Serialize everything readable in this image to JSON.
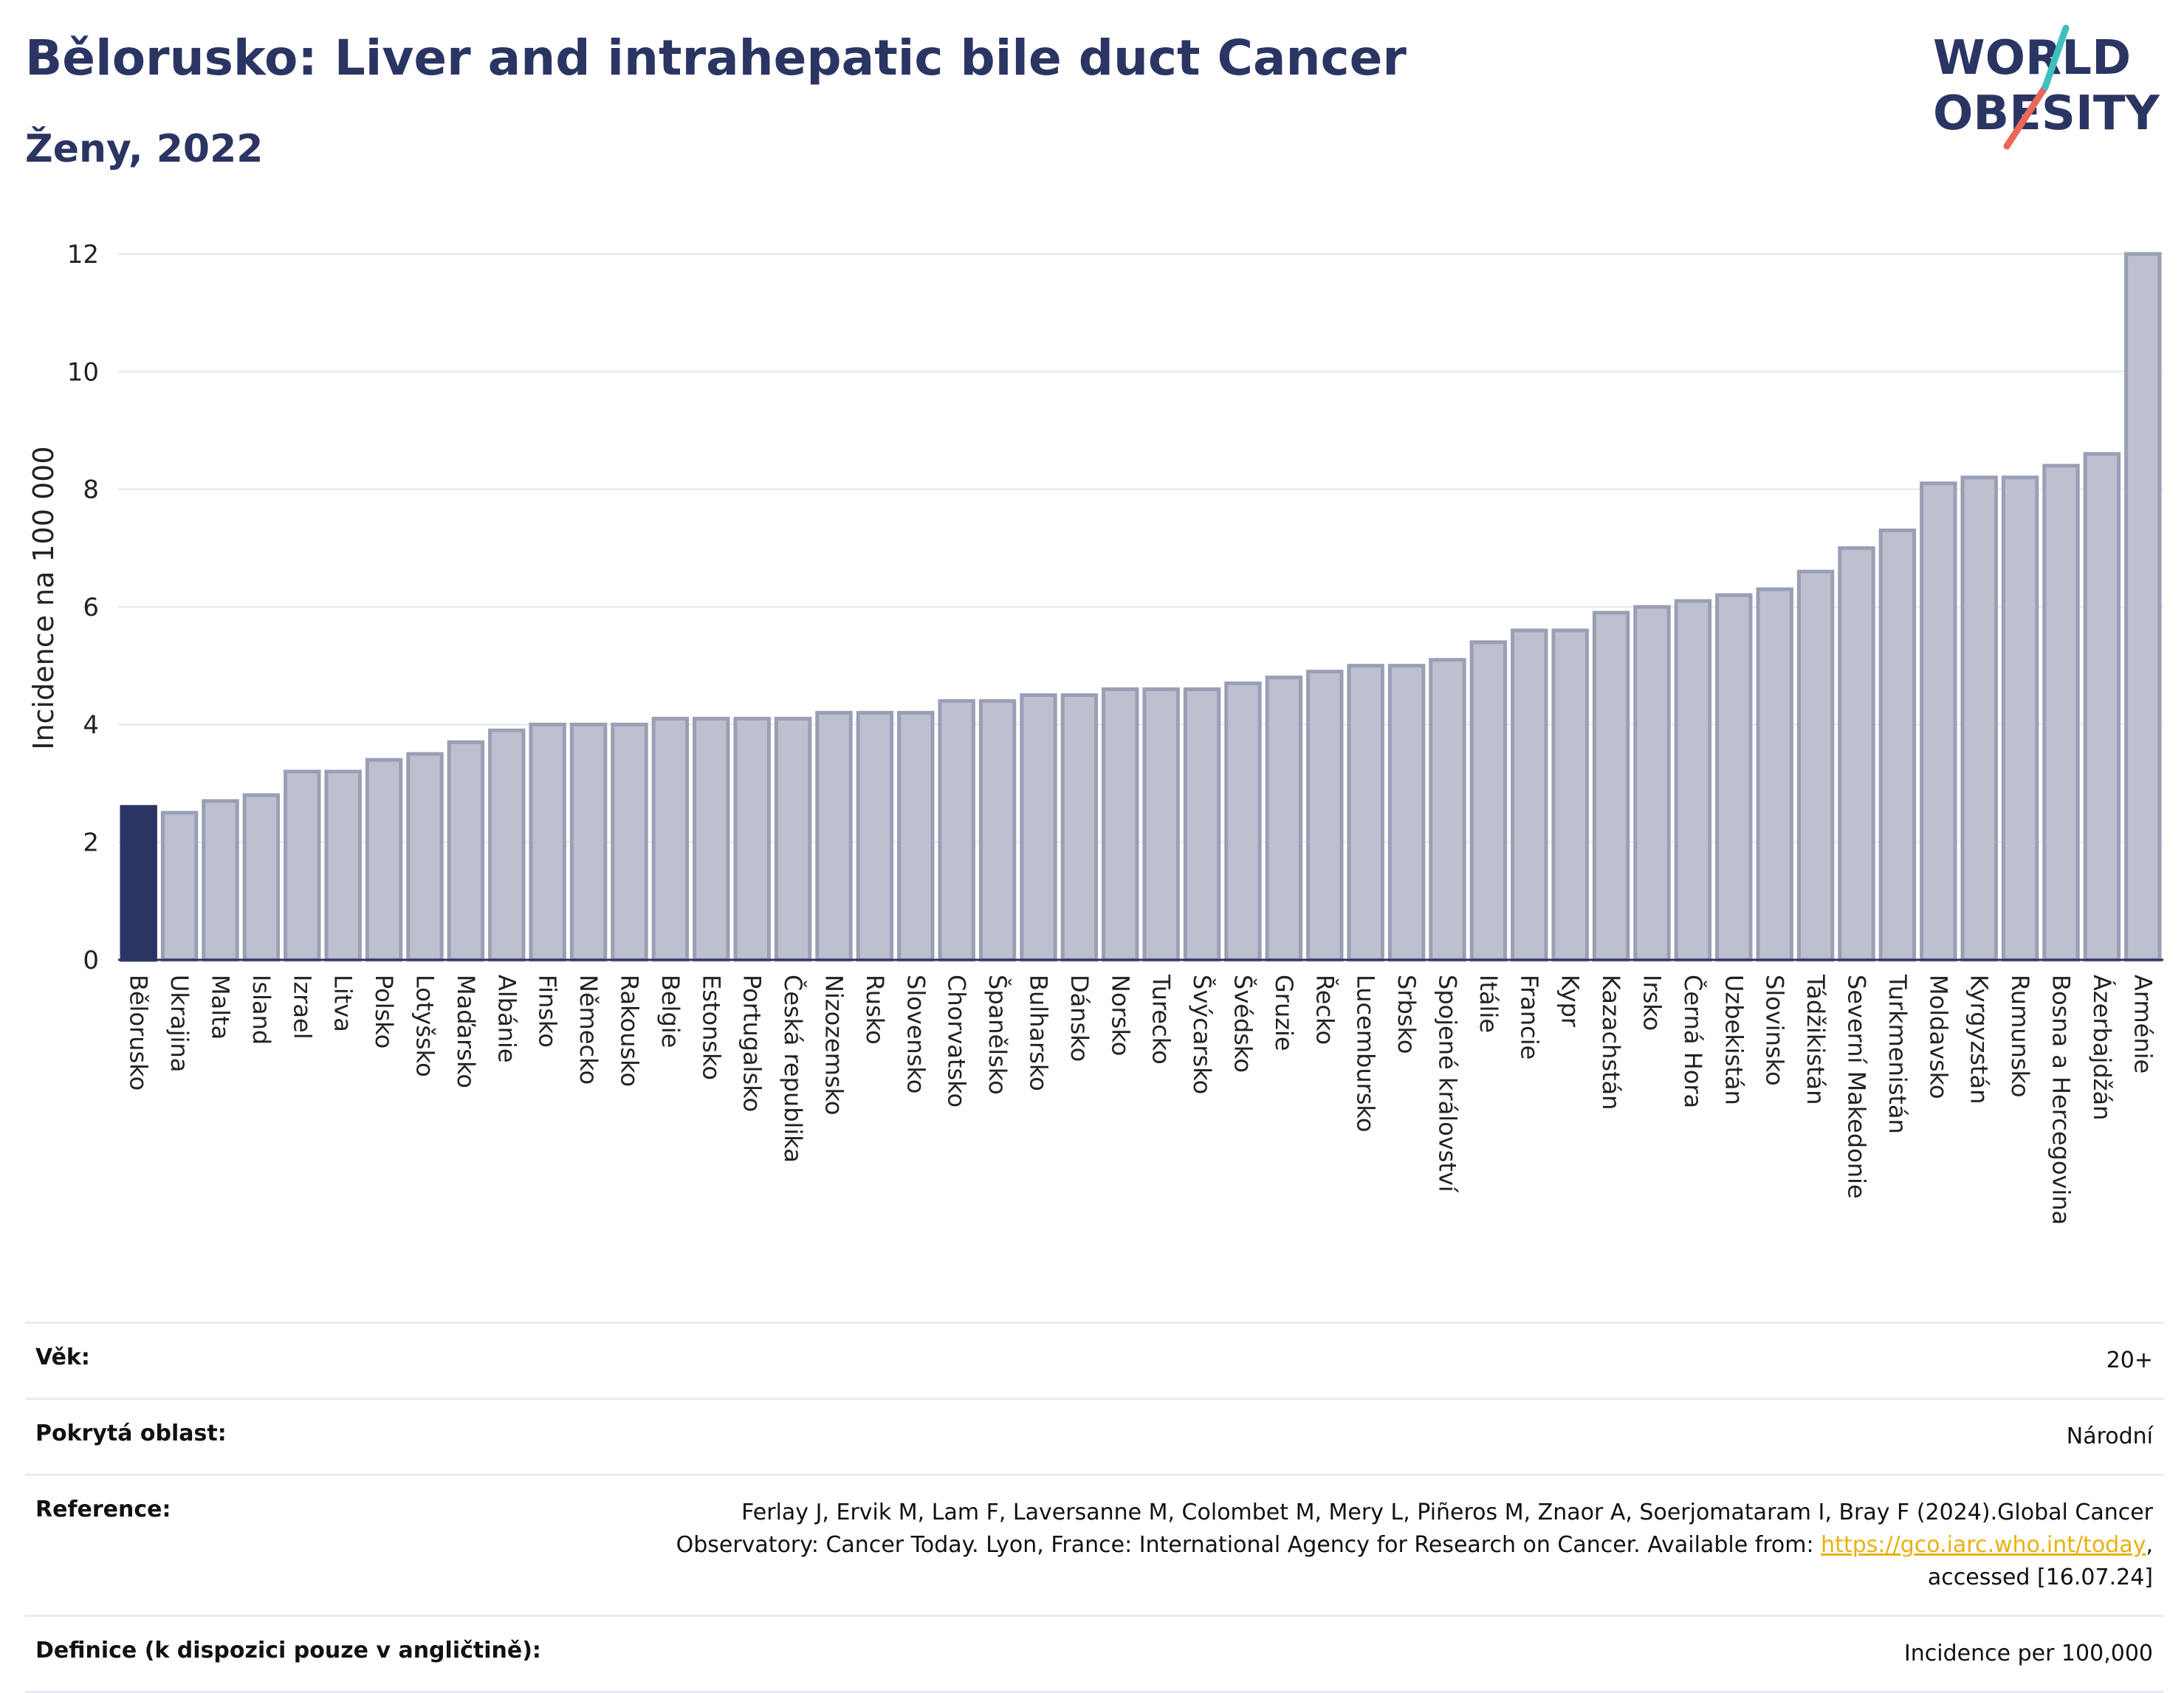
{
  "header": {
    "title": "Bělorusko: Liver and intrahepatic bile duct Cancer",
    "subtitle": "Ženy, 2022"
  },
  "logo": {
    "line1": "WORLD",
    "line2": "OBESITY",
    "colors": {
      "text": "#2b3563",
      "slash_teal": "#3fbfc0",
      "slash_red": "#e8685a"
    }
  },
  "chart_data": {
    "type": "bar",
    "ylabel": "Incidence na 100 000",
    "xlabel": "",
    "ylim": [
      0,
      12.3
    ],
    "yticks": [
      0,
      2,
      4,
      6,
      8,
      10,
      12
    ],
    "grid": true,
    "highlight_index": 0,
    "colors": {
      "highlight": "#2b3563",
      "bar_fill": "#bcc0cf",
      "bar_stroke": "#9a9fb5"
    },
    "categories": [
      "Bělorusko",
      "Ukrajina",
      "Malta",
      "Island",
      "Izrael",
      "Litva",
      "Polsko",
      "Lotyšsko",
      "Maďarsko",
      "Albánie",
      "Finsko",
      "Německo",
      "Rakousko",
      "Belgie",
      "Estonsko",
      "Portugalsko",
      "Česká republika",
      "Nizozemsko",
      "Rusko",
      "Slovensko",
      "Chorvatsko",
      "Španělsko",
      "Bulharsko",
      "Dánsko",
      "Norsko",
      "Turecko",
      "Švýcarsko",
      "Švédsko",
      "Gruzie",
      "Řecko",
      "Lucembursko",
      "Srbsko",
      "Spojené království",
      "Itálie",
      "Francie",
      "Kypr",
      "Kazachstán",
      "Irsko",
      "Černá Hora",
      "Uzbekistán",
      "Slovinsko",
      "Tádžikistán",
      "Severní Makedonie",
      "Turkmenistán",
      "Moldavsko",
      "Kyrgyzstán",
      "Rumunsko",
      "Bosna a Hercegovina",
      "Ázerbajdžán",
      "Arménie"
    ],
    "values": [
      2.6,
      2.5,
      2.7,
      2.8,
      3.2,
      3.2,
      3.4,
      3.5,
      3.7,
      3.9,
      4.0,
      4.0,
      4.0,
      4.1,
      4.1,
      4.1,
      4.1,
      4.2,
      4.2,
      4.2,
      4.4,
      4.4,
      4.5,
      4.5,
      4.6,
      4.6,
      4.6,
      4.7,
      4.8,
      4.9,
      5.0,
      5.0,
      5.1,
      5.4,
      5.6,
      5.6,
      5.9,
      6.0,
      6.1,
      6.2,
      6.3,
      6.6,
      7.0,
      7.3,
      8.1,
      8.2,
      8.2,
      8.4,
      8.6,
      12.0
    ]
  },
  "info": {
    "age_label": "Věk:",
    "age_value": "20+",
    "area_label": "Pokrytá oblast:",
    "area_value": "Národní",
    "reference_label": "Reference:",
    "reference_text": "Ferlay J, Ervik M, Lam F, Laversanne M, Colombet M, Mery L, Piñeros M, Znaor A, Soerjomataram I, Bray F (2024).Global Cancer Observatory: Cancer Today. Lyon, France: International Agency for Research on Cancer. Available from: ",
    "reference_link": "https://gco.iarc.who.int/today",
    "reference_suffix": ", accessed [16.07.24]",
    "definition_label": "Definice (k dispozici pouze v angličtině):",
    "definition_value": "Incidence per 100,000"
  }
}
